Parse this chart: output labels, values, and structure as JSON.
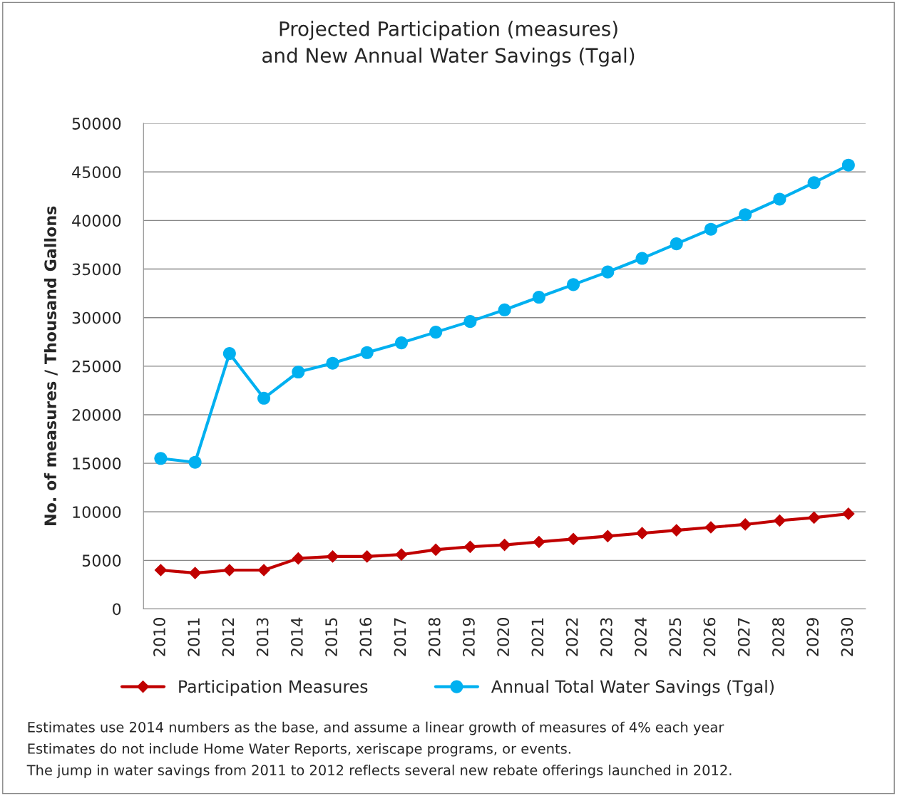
{
  "chart_data": {
    "type": "line",
    "title": "Projected Participation (measures)\nand New Annual Water Savings (Tgal)",
    "ylabel": "No. of measures / Thousand Gallons",
    "categories": [
      "2010",
      "2011",
      "2012",
      "2013",
      "2014",
      "2015",
      "2016",
      "2017",
      "2018",
      "2019",
      "2020",
      "2021",
      "2022",
      "2023",
      "2024",
      "2025",
      "2026",
      "2027",
      "2028",
      "2029",
      "2030"
    ],
    "series": [
      {
        "name": "Participation Measures",
        "color": "#c00000",
        "marker": "diamond",
        "values": [
          4000,
          3700,
          4000,
          4000,
          5200,
          5400,
          5400,
          5600,
          6100,
          6400,
          6600,
          6900,
          7200,
          7500,
          7800,
          8100,
          8400,
          8700,
          9100,
          9400,
          9800
        ]
      },
      {
        "name": "Annual Total Water Savings (Tgal)",
        "color": "#00b0f0",
        "marker": "circle",
        "values": [
          15500,
          15100,
          26300,
          21700,
          24400,
          25300,
          26400,
          27400,
          28500,
          29600,
          30800,
          32100,
          33400,
          34700,
          36100,
          37600,
          39100,
          40600,
          42200,
          43900,
          45700
        ]
      }
    ],
    "ylim": [
      0,
      50000
    ],
    "yticks": [
      0,
      5000,
      10000,
      15000,
      20000,
      25000,
      30000,
      35000,
      40000,
      45000,
      50000
    ],
    "grid": "y",
    "legend": "bottom",
    "annotations": [
      "Estimates use 2014 numbers as the base, and assume a linear growth of measures of 4% each year",
      "Estimates do not include Home Water Reports, xeriscape programs, or events.",
      "The jump in water savings from 2011 to 2012 reflects several new rebate offerings launched in 2012."
    ]
  }
}
